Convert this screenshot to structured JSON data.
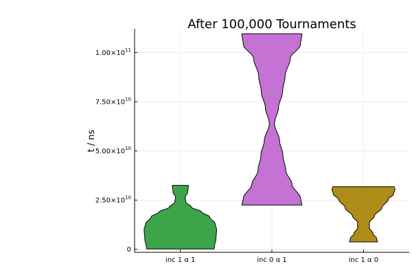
{
  "chart_data": {
    "type": "violin",
    "title": "After 100,000 Tournaments",
    "xlabel": "",
    "ylabel": "t / ns",
    "grid": true,
    "legend": false,
    "ylim": [
      -1500000000,
      112000000000
    ],
    "categories": [
      "inc 1 α 1",
      "inc 0 α 1",
      "inc 1 α 0"
    ],
    "yticks": [
      {
        "value": 0,
        "mantissa": "0",
        "exp": ""
      },
      {
        "value": 25000000000,
        "mantissa": "2.50×10",
        "exp": "10"
      },
      {
        "value": 50000000000,
        "mantissa": "5.00×10",
        "exp": "10"
      },
      {
        "value": 75000000000,
        "mantissa": "7.50×10",
        "exp": "10"
      },
      {
        "value": 100000000000,
        "mantissa": "1.00×10",
        "exp": "11"
      }
    ],
    "series": [
      {
        "category": "inc 1 α 1",
        "color": "#3ea44a",
        "min": 200000000,
        "max": 32500000000,
        "profile": [
          [
            200000000,
            0.92
          ],
          [
            1500000000,
            0.93
          ],
          [
            5000000000,
            0.97
          ],
          [
            10000000000,
            0.99
          ],
          [
            13000000000,
            0.95
          ],
          [
            16500000000,
            0.8
          ],
          [
            19000000000,
            0.58
          ],
          [
            21500000000,
            0.3
          ],
          [
            24000000000,
            0.15
          ],
          [
            26500000000,
            0.13
          ],
          [
            29000000000,
            0.2
          ],
          [
            32500000000,
            0.22
          ]
        ]
      },
      {
        "category": "inc 0 α 1",
        "color": "#c472d4",
        "min": 22500000000,
        "max": 109500000000,
        "profile": [
          [
            22500000000,
            0.82
          ],
          [
            26000000000,
            0.78
          ],
          [
            33000000000,
            0.55
          ],
          [
            40000000000,
            0.38
          ],
          [
            48000000000,
            0.3
          ],
          [
            55000000000,
            0.21
          ],
          [
            64000000000,
            0.07
          ],
          [
            72000000000,
            0.18
          ],
          [
            80000000000,
            0.29
          ],
          [
            88000000000,
            0.36
          ],
          [
            97000000000,
            0.5
          ],
          [
            104000000000,
            0.78
          ],
          [
            109500000000,
            0.82
          ]
        ]
      },
      {
        "category": "inc 1 α 0",
        "color": "#af8c17",
        "min": 3800000000,
        "max": 31800000000,
        "profile": [
          [
            3800000000,
            0.38
          ],
          [
            5500000000,
            0.36
          ],
          [
            8000000000,
            0.26
          ],
          [
            11000000000,
            0.16
          ],
          [
            13500000000,
            0.16
          ],
          [
            17000000000,
            0.3
          ],
          [
            21000000000,
            0.5
          ],
          [
            25500000000,
            0.68
          ],
          [
            28000000000,
            0.82
          ],
          [
            30500000000,
            0.86
          ],
          [
            31800000000,
            0.84
          ]
        ]
      }
    ]
  }
}
